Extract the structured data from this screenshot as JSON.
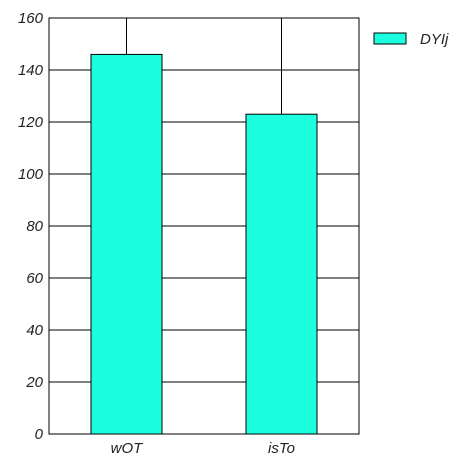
{
  "chart_data": {
    "type": "bar",
    "categories": [
      "wOT",
      "isTo"
    ],
    "series": [
      {
        "name": "DYIj",
        "values": [
          146,
          123
        ],
        "color": "#1cffdf"
      }
    ],
    "ylim": [
      0,
      160
    ],
    "yticks": [
      0,
      20,
      40,
      60,
      80,
      100,
      120,
      140,
      160
    ],
    "grid": "horizontal and vertical",
    "legend": "top-right",
    "title": "",
    "xlabel": "",
    "ylabel": ""
  }
}
